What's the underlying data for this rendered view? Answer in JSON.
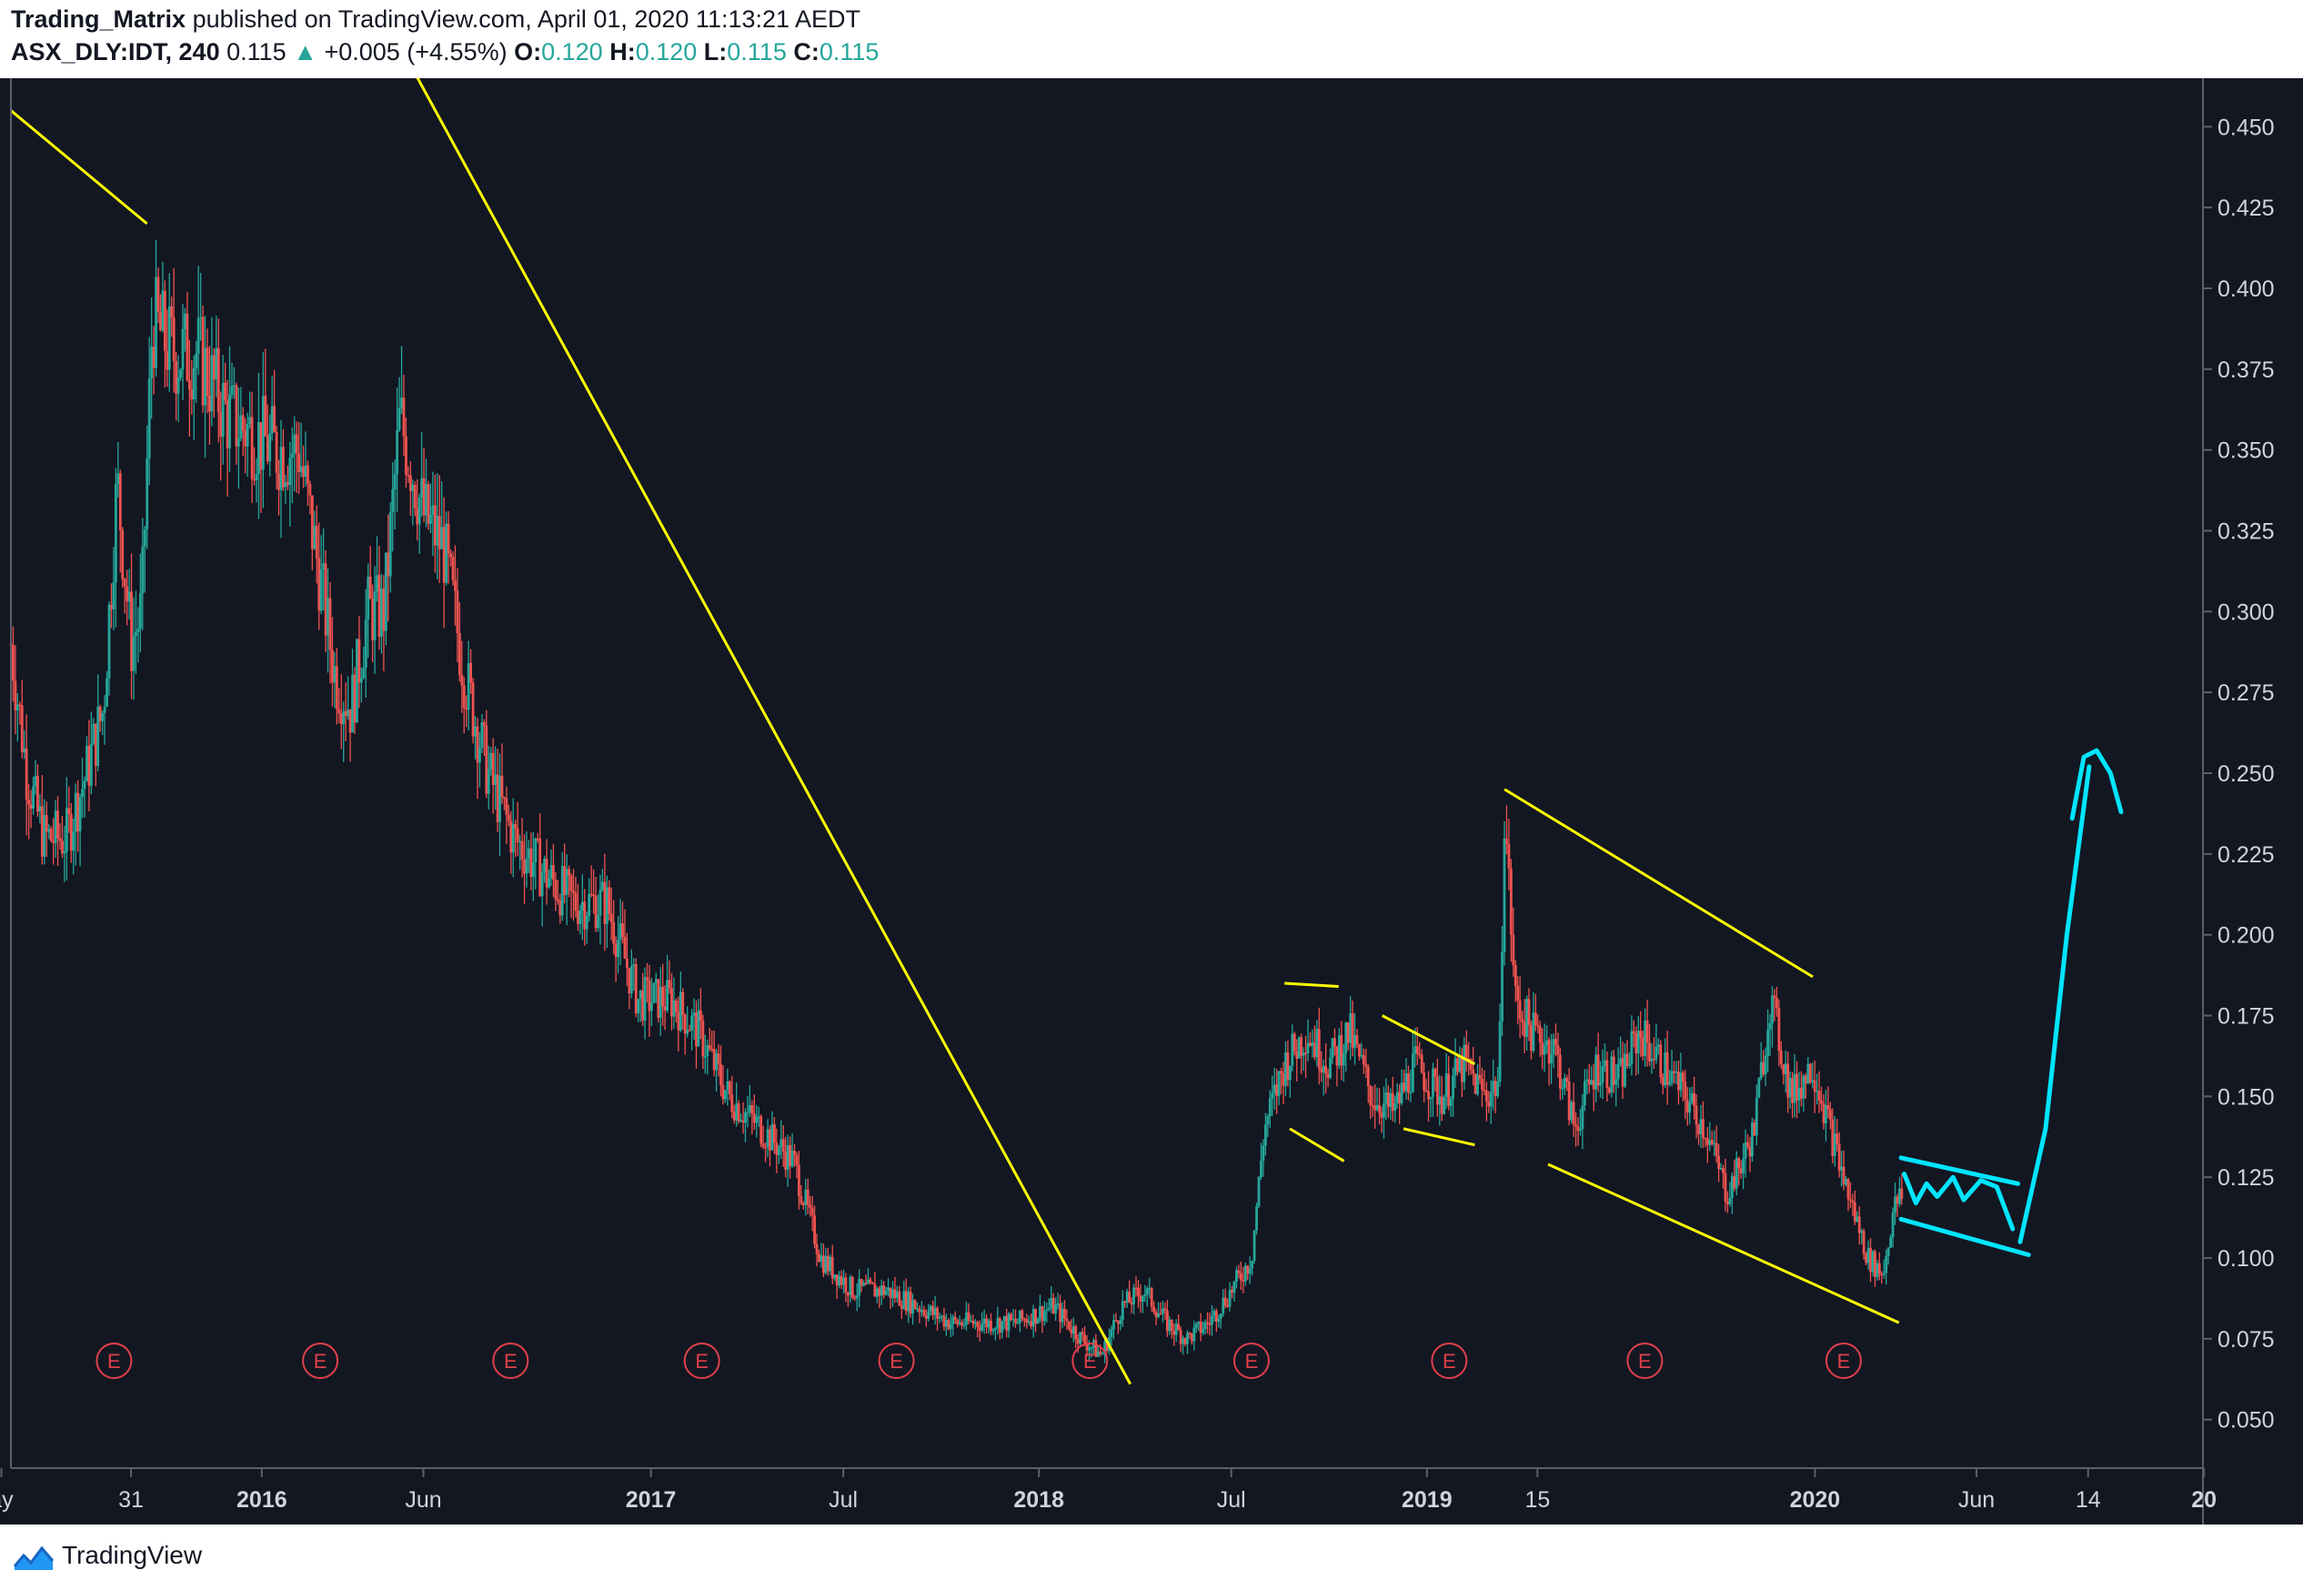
{
  "header": {
    "author": "Trading_Matrix",
    "published": "published on TradingView.com, April 01, 2020 11:13:21 AEDT",
    "symbol": "ASX_DLY:IDT, 240",
    "last": "0.115",
    "change": "+0.005 (+4.55%)",
    "o_label": "O:",
    "o": "0.120",
    "h_label": "H:",
    "h": "0.120",
    "l_label": "L:",
    "l": "0.115",
    "c_label": "C:",
    "c": "0.115"
  },
  "footer": {
    "brand": "TradingView",
    "logo_icon": "tradingview-logo-icon"
  },
  "colors": {
    "background": "#131722",
    "up": "#26a69a",
    "down": "#ef5350",
    "trendline": "#ffff00",
    "projection": "#00e5ff",
    "earnings": "#e0404a"
  },
  "chart_data": {
    "type": "candlestick",
    "symbol": "ASX_DLY:IDT",
    "interval": "240",
    "y_axis": {
      "min": 0.035,
      "max": 0.465,
      "ticks": [
        "0.450",
        "0.425",
        "0.400",
        "0.375",
        "0.350",
        "0.325",
        "0.300",
        "0.275",
        "0.250",
        "0.225",
        "0.200",
        "0.175",
        "0.150",
        "0.125",
        "0.100",
        "0.075",
        "0.050"
      ]
    },
    "x_axis": {
      "range": [
        "2015-05-10",
        "2020-12-31"
      ],
      "ticks": [
        {
          "date": "2015-05-01",
          "label": "ay",
          "bold": false
        },
        {
          "date": "2015-08-31",
          "label": "31",
          "bold": false
        },
        {
          "date": "2016-01-01",
          "label": "2016",
          "bold": true
        },
        {
          "date": "2016-06-01",
          "label": "Jun",
          "bold": false
        },
        {
          "date": "2017-01-01",
          "label": "2017",
          "bold": true
        },
        {
          "date": "2017-07-01",
          "label": "Jul",
          "bold": false
        },
        {
          "date": "2018-01-01",
          "label": "2018",
          "bold": true
        },
        {
          "date": "2018-07-01",
          "label": "Jul",
          "bold": false
        },
        {
          "date": "2019-01-01",
          "label": "2019",
          "bold": true
        },
        {
          "date": "2019-04-15",
          "label": "15",
          "bold": false
        },
        {
          "date": "2020-01-01",
          "label": "2020",
          "bold": true
        },
        {
          "date": "2020-06-01",
          "label": "Jun",
          "bold": false
        },
        {
          "date": "2020-09-14",
          "label": "14",
          "bold": false
        },
        {
          "date": "2021-01-01",
          "label": "20",
          "bold": true
        }
      ]
    },
    "earnings": {
      "label": "E",
      "dates": [
        "2015-08-15",
        "2016-02-25",
        "2016-08-22",
        "2017-02-18",
        "2017-08-20",
        "2018-02-18",
        "2018-07-20",
        "2019-01-22",
        "2019-07-25",
        "2020-01-28"
      ]
    },
    "price_path": [
      [
        "2015-05-10",
        0.29
      ],
      [
        "2015-05-25",
        0.25
      ],
      [
        "2015-06-10",
        0.23
      ],
      [
        "2015-07-01",
        0.23
      ],
      [
        "2015-07-20",
        0.25
      ],
      [
        "2015-08-05",
        0.27
      ],
      [
        "2015-08-18",
        0.34
      ],
      [
        "2015-08-31",
        0.29
      ],
      [
        "2015-09-10",
        0.3
      ],
      [
        "2015-09-20",
        0.39
      ],
      [
        "2015-10-10",
        0.38
      ],
      [
        "2015-11-01",
        0.38
      ],
      [
        "2015-12-01",
        0.36
      ],
      [
        "2016-01-15",
        0.35
      ],
      [
        "2016-02-05",
        0.35
      ],
      [
        "2016-02-25",
        0.31
      ],
      [
        "2016-03-10",
        0.28
      ],
      [
        "2016-03-25",
        0.27
      ],
      [
        "2016-04-10",
        0.3
      ],
      [
        "2016-04-25",
        0.3
      ],
      [
        "2016-05-10",
        0.36
      ],
      [
        "2016-06-01",
        0.33
      ],
      [
        "2016-06-20",
        0.32
      ],
      [
        "2016-07-10",
        0.28
      ],
      [
        "2016-08-01",
        0.25
      ],
      [
        "2016-08-25",
        0.23
      ],
      [
        "2016-09-20",
        0.22
      ],
      [
        "2016-10-20",
        0.21
      ],
      [
        "2016-11-20",
        0.21
      ],
      [
        "2016-12-20",
        0.18
      ],
      [
        "2017-01-20",
        0.18
      ],
      [
        "2017-02-15",
        0.17
      ],
      [
        "2017-03-15",
        0.15
      ],
      [
        "2017-04-15",
        0.14
      ],
      [
        "2017-05-15",
        0.13
      ],
      [
        "2017-06-10",
        0.1
      ],
      [
        "2017-07-10",
        0.09
      ],
      [
        "2017-08-10",
        0.09
      ],
      [
        "2017-09-10",
        0.085
      ],
      [
        "2017-10-10",
        0.08
      ],
      [
        "2017-11-10",
        0.08
      ],
      [
        "2017-12-10",
        0.08
      ],
      [
        "2018-01-15",
        0.085
      ],
      [
        "2018-02-10",
        0.075
      ],
      [
        "2018-03-01",
        0.07
      ],
      [
        "2018-03-20",
        0.085
      ],
      [
        "2018-04-10",
        0.09
      ],
      [
        "2018-05-01",
        0.08
      ],
      [
        "2018-05-20",
        0.075
      ],
      [
        "2018-06-10",
        0.08
      ],
      [
        "2018-07-01",
        0.09
      ],
      [
        "2018-07-20",
        0.1
      ],
      [
        "2018-08-01",
        0.14
      ],
      [
        "2018-08-20",
        0.16
      ],
      [
        "2018-09-10",
        0.17
      ],
      [
        "2018-10-01",
        0.16
      ],
      [
        "2018-10-20",
        0.17
      ],
      [
        "2018-11-10",
        0.15
      ],
      [
        "2018-12-01",
        0.145
      ],
      [
        "2018-12-20",
        0.16
      ],
      [
        "2019-01-15",
        0.15
      ],
      [
        "2019-02-05",
        0.16
      ],
      [
        "2019-02-25",
        0.15
      ],
      [
        "2019-03-10",
        0.155
      ],
      [
        "2019-03-15",
        0.24
      ],
      [
        "2019-03-25",
        0.18
      ],
      [
        "2019-04-10",
        0.17
      ],
      [
        "2019-05-01",
        0.165
      ],
      [
        "2019-05-20",
        0.14
      ],
      [
        "2019-06-10",
        0.16
      ],
      [
        "2019-07-01",
        0.155
      ],
      [
        "2019-07-20",
        0.17
      ],
      [
        "2019-08-10",
        0.16
      ],
      [
        "2019-09-01",
        0.15
      ],
      [
        "2019-09-20",
        0.14
      ],
      [
        "2019-10-10",
        0.12
      ],
      [
        "2019-10-25",
        0.13
      ],
      [
        "2019-11-05",
        0.14
      ],
      [
        "2019-11-20",
        0.18
      ],
      [
        "2019-12-10",
        0.15
      ],
      [
        "2019-12-30",
        0.16
      ],
      [
        "2020-01-15",
        0.14
      ],
      [
        "2020-02-01",
        0.12
      ],
      [
        "2020-02-20",
        0.1
      ],
      [
        "2020-03-05",
        0.095
      ],
      [
        "2020-03-15",
        0.115
      ],
      [
        "2020-03-24",
        0.12
      ]
    ],
    "trendlines": [
      {
        "from": [
          "2015-05-10",
          0.455
        ],
        "to": [
          "2015-09-15",
          0.42
        ]
      },
      {
        "from": [
          "2016-05-25",
          0.466
        ],
        "to": [
          "2018-03-28",
          0.061
        ]
      },
      {
        "from": [
          "2018-08-20",
          0.185
        ],
        "to": [
          "2018-10-10",
          0.184
        ]
      },
      {
        "from": [
          "2018-08-25",
          0.14
        ],
        "to": [
          "2018-10-15",
          0.13
        ]
      },
      {
        "from": [
          "2018-11-20",
          0.175
        ],
        "to": [
          "2019-02-15",
          0.16
        ]
      },
      {
        "from": [
          "2018-12-10",
          0.14
        ],
        "to": [
          "2019-02-15",
          0.135
        ]
      },
      {
        "from": [
          "2019-03-15",
          0.245
        ],
        "to": [
          "2019-12-30",
          0.187
        ]
      },
      {
        "from": [
          "2019-04-25",
          0.129
        ],
        "to": [
          "2020-03-20",
          0.08
        ]
      }
    ],
    "projection": {
      "channel_upper": {
        "from": [
          "2020-03-22",
          0.131
        ],
        "to": [
          "2020-07-10",
          0.123
        ]
      },
      "channel_lower": {
        "from": [
          "2020-03-22",
          0.112
        ],
        "to": [
          "2020-07-20",
          0.101
        ]
      },
      "wave": [
        [
          "2020-03-25",
          0.126
        ],
        [
          "2020-04-05",
          0.117
        ],
        [
          "2020-04-15",
          0.123
        ],
        [
          "2020-04-25",
          0.119
        ],
        [
          "2020-05-10",
          0.125
        ],
        [
          "2020-05-20",
          0.118
        ],
        [
          "2020-06-05",
          0.124
        ],
        [
          "2020-06-20",
          0.122
        ],
        [
          "2020-07-05",
          0.109
        ]
      ],
      "arrow_shaft": [
        [
          "2020-07-12",
          0.105
        ],
        [
          "2020-08-05",
          0.14
        ],
        [
          "2020-08-25",
          0.2
        ],
        [
          "2020-09-15",
          0.252
        ]
      ],
      "arrow_head": [
        [
          "2020-08-30",
          0.236
        ],
        [
          "2020-09-10",
          0.255
        ],
        [
          "2020-09-22",
          0.257
        ],
        [
          "2020-10-05",
          0.25
        ],
        [
          "2020-10-15",
          0.238
        ]
      ]
    }
  }
}
